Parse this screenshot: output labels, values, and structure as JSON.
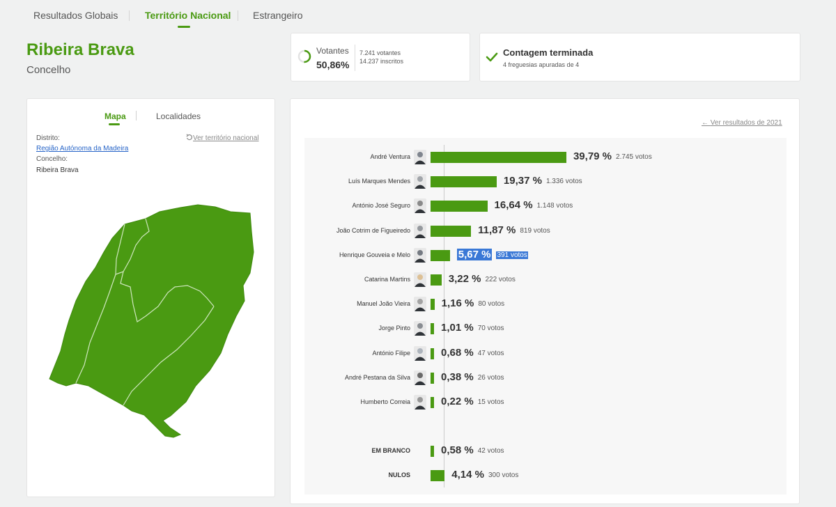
{
  "tabs": [
    {
      "label": "Resultados Globais",
      "active": false
    },
    {
      "label": "Território Nacional",
      "active": true
    },
    {
      "label": "Estrangeiro",
      "active": false
    }
  ],
  "place": {
    "name": "Ribeira Brava",
    "type": "Concelho"
  },
  "turnout": {
    "label": "Votantes",
    "percent": "50,86%",
    "fraction": 0.5086,
    "voters": "7.241 votantes",
    "registered": "14.237 inscritos"
  },
  "count": {
    "title": "Contagem terminada",
    "subtitle": "4 freguesias apuradas de 4"
  },
  "left_panel": {
    "tabs": [
      "Mapa",
      "Localidades"
    ],
    "district_label": "Distrito:",
    "district_value": "Região Autónoma da Madeira",
    "county_label": "Concelho:",
    "county_value": "Ribeira Brava",
    "national_link": "Ver território nacional"
  },
  "results": {
    "previous_link": "Ver resultados de 2021",
    "bar_color": "#4a9a12",
    "candidates": [
      {
        "name": "André Ventura",
        "pct": "39,79 %",
        "votes": "2.745 votos",
        "value": 39.79
      },
      {
        "name": "Luís Marques Mendes",
        "pct": "19,37 %",
        "votes": "1.336 votos",
        "value": 19.37
      },
      {
        "name": "António José Seguro",
        "pct": "16,64 %",
        "votes": "1.148 votos",
        "value": 16.64
      },
      {
        "name": "João Cotrim de Figueiredo",
        "pct": "11,87 %",
        "votes": "819 votos",
        "value": 11.87
      },
      {
        "name": "Henrique Gouveia e Melo",
        "pct": "5,67 %",
        "votes": "391 votos",
        "value": 5.67,
        "highlight": true
      },
      {
        "name": "Catarina Martins",
        "pct": "3,22 %",
        "votes": "222 votos",
        "value": 3.22
      },
      {
        "name": "Manuel João Vieira",
        "pct": "1,16 %",
        "votes": "80 votos",
        "value": 1.16
      },
      {
        "name": "Jorge Pinto",
        "pct": "1,01 %",
        "votes": "70 votos",
        "value": 1.01
      },
      {
        "name": "António Filipe",
        "pct": "0,68 %",
        "votes": "47 votos",
        "value": 0.68
      },
      {
        "name": "André Pestana da Silva",
        "pct": "0,38 %",
        "votes": "26 votos",
        "value": 0.38
      },
      {
        "name": "Humberto Correia",
        "pct": "0,22 %",
        "votes": "15 votos",
        "value": 0.22
      }
    ],
    "other": [
      {
        "name": "EM BRANCO",
        "pct": "0,58 %",
        "votes": "42 votos",
        "value": 0.58
      },
      {
        "name": "NULOS",
        "pct": "4,14 %",
        "votes": "300 votos",
        "value": 4.14
      }
    ]
  }
}
